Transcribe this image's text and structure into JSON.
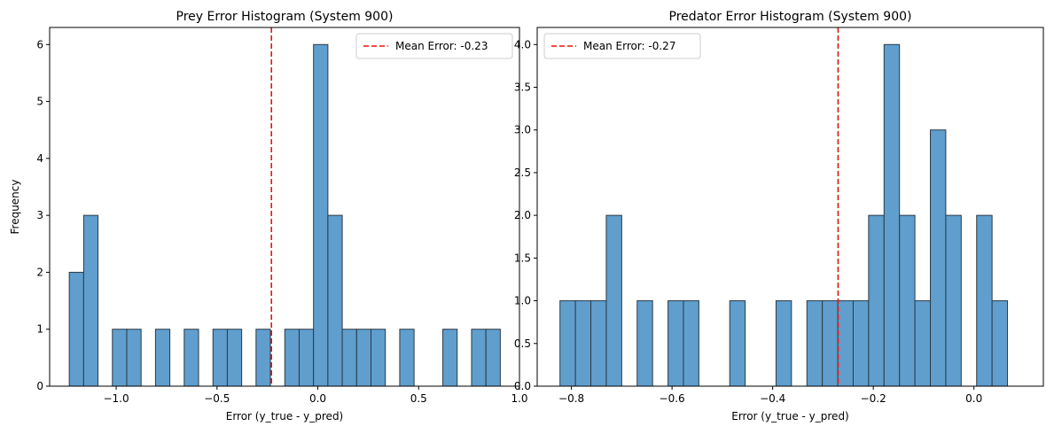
{
  "chart_data": [
    {
      "type": "bar",
      "title": "Prey Error Histogram (System 900)",
      "xlabel": "Error (y_true - y_pred)",
      "ylabel": "Frequency",
      "xlim": [
        -1.33,
        1.0
      ],
      "ylim": [
        0,
        6.3
      ],
      "x_ticks": [
        -1.0,
        -0.5,
        0.0,
        0.5,
        1.0
      ],
      "x_tick_labels": [
        "−1.0",
        "−0.5",
        "0.0",
        "0.5",
        "1.0"
      ],
      "y_ticks": [
        0,
        1,
        2,
        3,
        4,
        5,
        6
      ],
      "y_tick_labels": [
        "0",
        "1",
        "2",
        "3",
        "4",
        "5",
        "6"
      ],
      "bin_start": -1.2326,
      "bin_width": 0.07125,
      "counts": [
        2,
        3,
        0,
        1,
        1,
        0,
        1,
        0,
        1,
        0,
        1,
        1,
        0,
        1,
        0,
        1,
        1,
        6,
        3,
        1,
        1,
        1,
        0,
        1,
        0,
        0,
        1,
        0,
        1,
        1
      ],
      "bar_color": "#5f9ecd",
      "edge_color": "#2b3a46",
      "mean": -0.23,
      "mean_label": "Mean Error: -0.23",
      "mean_color": "#e8130f",
      "legend_position": "upper right",
      "grid": false
    },
    {
      "type": "bar",
      "title": "Predator Error Histogram (System 900)",
      "xlabel": "Error (y_true - y_pred)",
      "ylabel": "",
      "xlim": [
        -0.868,
        0.138
      ],
      "ylim": [
        0,
        4.2
      ],
      "x_ticks": [
        -0.8,
        -0.6,
        -0.4,
        -0.2,
        0.0
      ],
      "x_tick_labels": [
        "−0.8",
        "−0.6",
        "−0.4",
        "−0.2",
        "0.0"
      ],
      "y_ticks": [
        0.0,
        0.5,
        1.0,
        1.5,
        2.0,
        2.5,
        3.0,
        3.5,
        4.0
      ],
      "y_tick_labels": [
        "0.0",
        "0.5",
        "1.0",
        "1.5",
        "2.0",
        "2.5",
        "3.0",
        "3.5",
        "4.0"
      ],
      "bin_start": -0.8227,
      "bin_width": 0.03067,
      "counts": [
        1,
        1,
        1,
        2,
        0,
        1,
        0,
        1,
        1,
        0,
        0,
        1,
        0,
        0,
        1,
        0,
        1,
        1,
        1,
        1,
        2,
        4,
        2,
        1,
        3,
        2,
        0,
        2,
        1
      ],
      "bar_color": "#5f9ecd",
      "edge_color": "#2b3a46",
      "mean": -0.27,
      "mean_label": "Mean Error: -0.27",
      "mean_color": "#e8130f",
      "legend_position": "upper left",
      "grid": false
    }
  ]
}
